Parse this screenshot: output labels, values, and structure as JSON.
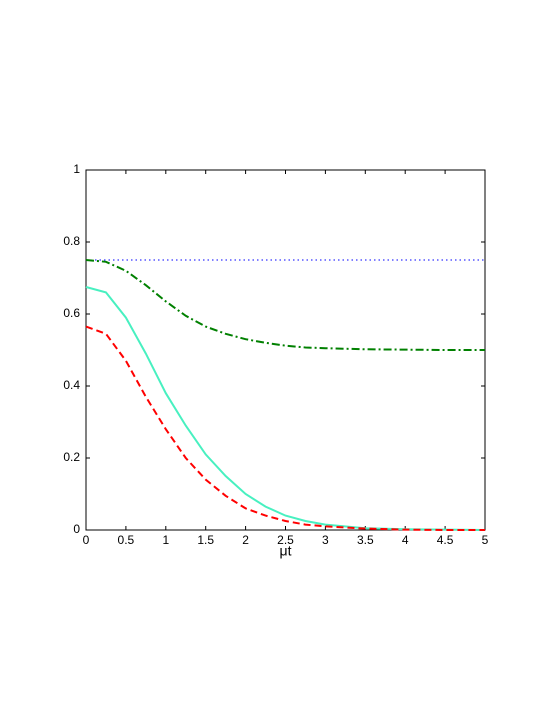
{
  "chart_data": {
    "type": "line",
    "xlabel": "μt",
    "x": [
      0,
      0.25,
      0.5,
      0.75,
      1,
      1.25,
      1.5,
      1.75,
      2,
      2.25,
      2.5,
      2.75,
      3,
      3.5,
      4,
      4.5,
      5
    ],
    "series": [
      {
        "color": "#0000ff",
        "style": "dotted",
        "values": [
          0.75,
          0.75,
          0.75,
          0.75,
          0.75,
          0.75,
          0.75,
          0.75,
          0.75,
          0.75,
          0.75,
          0.75,
          0.75,
          0.75,
          0.75,
          0.75,
          0.75
        ]
      },
      {
        "color": "#008000",
        "style": "dashdot",
        "values": [
          0.75,
          0.745,
          0.72,
          0.68,
          0.635,
          0.595,
          0.565,
          0.545,
          0.53,
          0.52,
          0.512,
          0.507,
          0.505,
          0.502,
          0.501,
          0.5,
          0.5
        ]
      },
      {
        "color": "#48f0c0",
        "style": "solid",
        "values": [
          0.675,
          0.66,
          0.59,
          0.49,
          0.38,
          0.29,
          0.21,
          0.15,
          0.1,
          0.065,
          0.04,
          0.025,
          0.015,
          0.005,
          0.002,
          0.001,
          0
        ]
      },
      {
        "color": "#ff0000",
        "style": "dashed",
        "values": [
          0.565,
          0.545,
          0.47,
          0.37,
          0.28,
          0.2,
          0.14,
          0.095,
          0.06,
          0.04,
          0.025,
          0.015,
          0.01,
          0.004,
          0.001,
          0,
          0
        ]
      }
    ],
    "xlim": [
      0,
      5
    ],
    "xticks": [
      0,
      0.5,
      1,
      1.5,
      2,
      2.5,
      3,
      3.5,
      4,
      4.5,
      5
    ],
    "ylim": [
      0,
      1
    ],
    "yticks": [
      0,
      0.2,
      0.4,
      0.6,
      0.8,
      1
    ]
  }
}
